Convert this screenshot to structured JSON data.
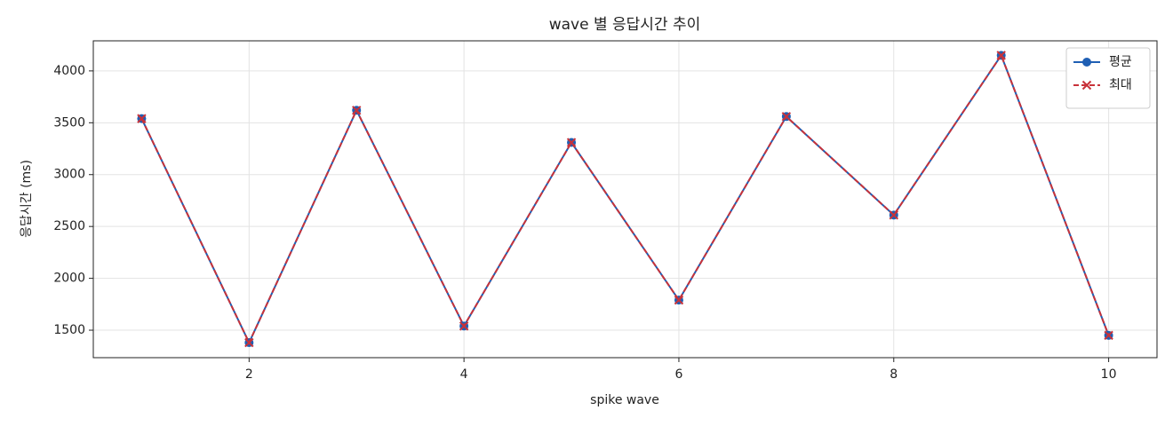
{
  "chart_data": {
    "type": "line",
    "title": "wave 별 응답시간 추이",
    "x_label": "spike wave",
    "y_label": "응답시간 (ms)",
    "x": [
      1,
      2,
      3,
      4,
      5,
      6,
      7,
      8,
      9,
      10
    ],
    "series": [
      {
        "name": "평균",
        "color": "#1f5fb4",
        "linestyle": "solid",
        "marker": "circle",
        "values": [
          3540,
          1380,
          3620,
          1540,
          3310,
          1790,
          3560,
          2610,
          4150,
          1450
        ]
      },
      {
        "name": "최대",
        "color": "#c8323a",
        "linestyle": "dashed",
        "marker": "cross",
        "values": [
          3540,
          1380,
          3620,
          1540,
          3310,
          1790,
          3560,
          2610,
          4150,
          1450
        ]
      }
    ],
    "xlim": [
      0.55,
      10.45
    ],
    "ylim": [
      1235,
      4290
    ],
    "xticks": [
      2,
      4,
      6,
      8,
      10
    ],
    "yticks": [
      1500,
      2000,
      2500,
      3000,
      3500,
      4000
    ],
    "grid": true,
    "legend": "upper-right"
  }
}
